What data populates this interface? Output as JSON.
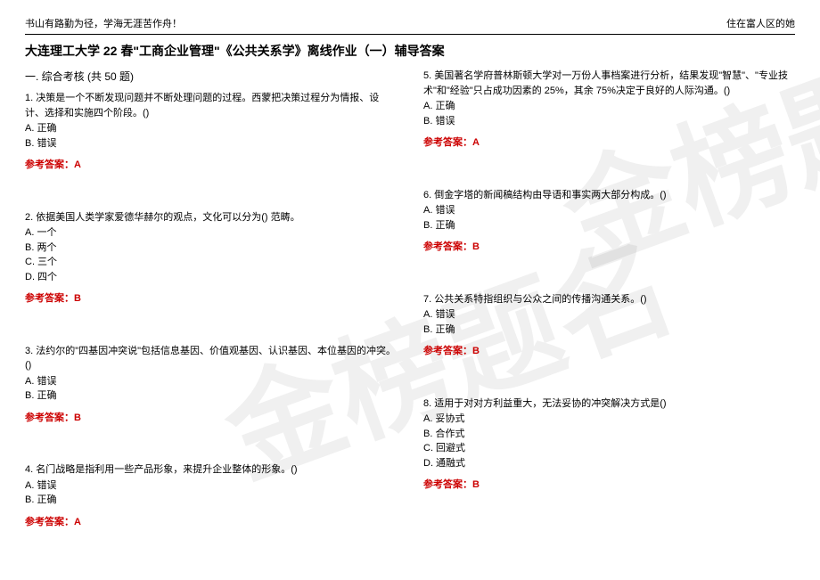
{
  "header": {
    "left": "书山有路勤为径，学海无涯苦作舟！",
    "right": "住在富人区的她"
  },
  "title": "大连理工大学 22 春\"工商企业管理\"《公共关系学》离线作业（一）辅导答案",
  "subtitle": "一. 综合考核 (共 50 题)",
  "watermark": "金榜题名",
  "answer_label_prefix": "参考答案：",
  "left_questions": [
    {
      "text": "1. 决策是一个不断发现问题并不断处理问题的过程。西蒙把决策过程分为情报、设计、选择和实施四个阶段。()",
      "opts": [
        "A. 正确",
        "B. 错误"
      ],
      "answer": "A"
    },
    {
      "text": "2. 依据美国人类学家爱德华赫尔的观点，文化可以分为() 范畴。",
      "opts": [
        "A. 一个",
        "B. 两个",
        "C. 三个",
        "D. 四个"
      ],
      "answer": "B"
    },
    {
      "text": "3. 法约尔的\"四基因冲突说\"包括信息基因、价值观基因、认识基因、本位基因的冲突。()",
      "opts": [
        "A. 错误",
        "B. 正确"
      ],
      "answer": "B"
    },
    {
      "text": "4. 名门战略是指利用一些产品形象，来提升企业整体的形象。()",
      "opts": [
        "A. 错误",
        "B. 正确"
      ],
      "answer": "A"
    }
  ],
  "right_questions": [
    {
      "text": "5. 美国著名学府普林斯顿大学对一万份人事档案进行分析，结果发现\"智慧\"、\"专业技术\"和\"经验\"只占成功因素的 25%，其余 75%决定于良好的人际沟通。()",
      "opts": [
        "A. 正确",
        "B. 错误"
      ],
      "answer": "A"
    },
    {
      "text": "6. 倒金字塔的新闻稿结构由导语和事实两大部分构成。()",
      "opts": [
        "A. 错误",
        "B. 正确"
      ],
      "answer": "B"
    },
    {
      "text": "7. 公共关系特指组织与公众之间的传播沟通关系。()",
      "opts": [
        "A. 错误",
        "B. 正确"
      ],
      "answer": "B"
    },
    {
      "text": "8. 适用于对对方利益重大，无法妥协的冲突解决方式是()",
      "opts": [
        "A. 妥协式",
        "B. 合作式",
        "C. 回避式",
        "D. 通融式"
      ],
      "answer": "B"
    }
  ]
}
